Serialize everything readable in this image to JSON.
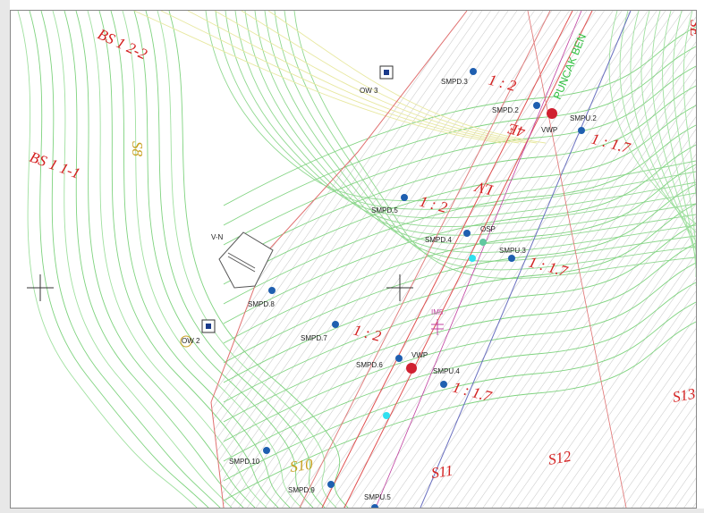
{
  "map": {
    "labels": [
      "BS 1 2-2",
      "BS 1 1-1",
      "S8",
      "OW 3",
      "SMPD.3",
      "1 : 2",
      "PUNCAK BEN",
      "SE",
      "SMPD.2",
      "VWP",
      "SMPU.2",
      "1 : 1.7",
      "4E",
      "SMPD.5",
      "1 : 2",
      "LV",
      "V-N",
      "SMPD.4",
      "OSP",
      "SMPU.3",
      "1 : 1.7",
      "SMPD.8",
      "IM5",
      "SMPD.7",
      "1 : 2",
      "OW 2",
      "SMPD.6",
      "VWP",
      "SMPU.4",
      "1 : 1.7",
      "S13",
      "SMPD.10",
      "S10",
      "S11",
      "S12",
      "SMPD.9",
      "SMPU.5"
    ]
  }
}
